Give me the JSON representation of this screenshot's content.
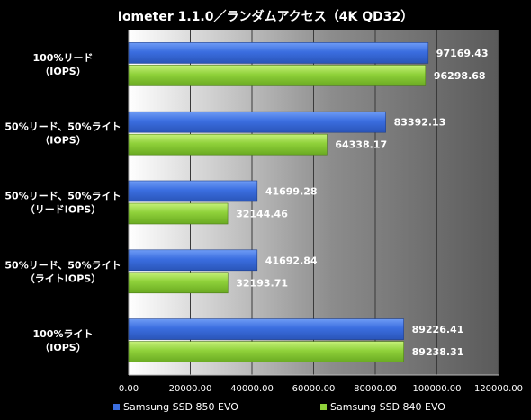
{
  "chart_data": {
    "type": "bar",
    "orientation": "horizontal",
    "title": "Iometer 1.1.0／ランダムアクセス（4K QD32）",
    "categories": [
      "100%リード\n（IOPS）",
      "50%リード、50%ライト\n（IOPS）",
      "50%リード、50%ライト\n（リードIOPS）",
      "50%リード、50%ライト\n（ライトIOPS）",
      "100%ライト\n（IOPS）"
    ],
    "series": [
      {
        "name": "Samsung SSD 850 EVO",
        "color": "#3b6ee0",
        "values": [
          97169.43,
          83392.13,
          41699.28,
          41692.84,
          89226.41
        ],
        "labels": [
          "97169.43",
          "83392.13",
          "41699.28",
          "41692.84",
          "89226.41"
        ]
      },
      {
        "name": "Samsung SSD 840 EVO",
        "color": "#8fd13a",
        "values": [
          96298.68,
          64338.17,
          32144.46,
          32193.71,
          89238.31
        ],
        "labels": [
          "96298.68",
          "64338.17",
          "32144.46",
          "32193.71",
          "89238.31"
        ]
      }
    ],
    "xlim": [
      0,
      120000
    ],
    "xticks": [
      0,
      20000,
      40000,
      60000,
      80000,
      100000,
      120000
    ],
    "xtick_labels": [
      "0.00",
      "20000.00",
      "40000.00",
      "60000.00",
      "80000.00",
      "100000.00",
      "120000.00"
    ],
    "grid": true,
    "legend_position": "bottom"
  }
}
